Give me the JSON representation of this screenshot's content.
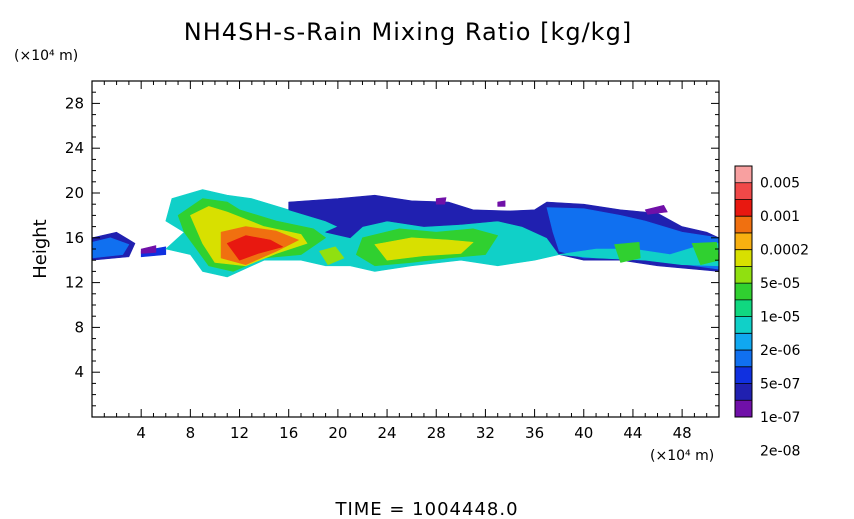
{
  "chart_data": {
    "type": "heatmap",
    "title": "NH4SH-s-Rain Mixing Ratio [kg/kg]",
    "ylabel": "Height",
    "xlabel": "",
    "y_unit": "(×10⁴ m)",
    "x_unit": "(×10⁴ m)",
    "xlim": [
      0,
      51
    ],
    "ylim": [
      0,
      30
    ],
    "x_ticks": [
      4,
      8,
      12,
      16,
      20,
      24,
      28,
      32,
      36,
      40,
      44,
      48
    ],
    "y_ticks": [
      4,
      8,
      12,
      16,
      20,
      24,
      28
    ],
    "colorbar": {
      "labels": [
        "0.005",
        "0.001",
        "0.0002",
        "5e-05",
        "1e-05",
        "2e-06",
        "5e-07",
        "1e-07",
        "2e-08"
      ],
      "colors": [
        "#f8a0a0",
        "#f04848",
        "#e81810",
        "#f07010",
        "#f8b010",
        "#d8e000",
        "#90e010",
        "#30d030",
        "#10d880",
        "#10d0c8",
        "#10a8f0",
        "#1070f0",
        "#1030e0",
        "#2020b0",
        "#7010a8"
      ]
    },
    "regions": [
      {
        "level": 13,
        "pts": [
          [
            0,
            14
          ],
          [
            3,
            14.3
          ],
          [
            3.5,
            15.5
          ],
          [
            2,
            16.5
          ],
          [
            0,
            16
          ]
        ]
      },
      {
        "level": 11,
        "pts": [
          [
            0,
            14.2
          ],
          [
            2.5,
            14.5
          ],
          [
            3,
            15.4
          ],
          [
            1.5,
            16
          ],
          [
            0,
            15.6
          ]
        ]
      },
      {
        "level": 12,
        "pts": [
          [
            4,
            14.8
          ],
          [
            6,
            15.2
          ],
          [
            6,
            14.5
          ],
          [
            4,
            14.3
          ]
        ]
      },
      {
        "level": 9,
        "pts": [
          [
            6,
            15
          ],
          [
            7.5,
            16.5
          ],
          [
            6,
            17.5
          ],
          [
            6.5,
            19.5
          ],
          [
            9,
            20.3
          ],
          [
            11,
            19.8
          ],
          [
            13,
            19.5
          ],
          [
            16,
            18.5
          ],
          [
            19,
            17.5
          ],
          [
            20,
            17
          ],
          [
            19,
            16.5
          ],
          [
            21,
            16
          ],
          [
            22,
            17
          ],
          [
            24,
            17.5
          ],
          [
            27,
            17
          ],
          [
            30,
            17.2
          ],
          [
            33,
            17.5
          ],
          [
            35,
            17
          ],
          [
            37,
            16
          ],
          [
            38,
            14.5
          ],
          [
            36,
            14
          ],
          [
            33,
            13.5
          ],
          [
            30,
            14
          ],
          [
            26,
            13.5
          ],
          [
            23,
            13
          ],
          [
            21,
            13.5
          ],
          [
            19,
            13.5
          ],
          [
            17,
            14
          ],
          [
            14,
            14
          ],
          [
            11,
            12.5
          ],
          [
            9,
            13
          ],
          [
            8,
            14.5
          ]
        ]
      },
      {
        "level": 13,
        "pts": [
          [
            16,
            19.2
          ],
          [
            20,
            19.5
          ],
          [
            23,
            19.8
          ],
          [
            26,
            19.3
          ],
          [
            29,
            19.2
          ],
          [
            31,
            18.5
          ],
          [
            34,
            18.4
          ],
          [
            36,
            18.5
          ],
          [
            37,
            19.2
          ],
          [
            40,
            19
          ],
          [
            43,
            18.5
          ],
          [
            46,
            18.2
          ],
          [
            48,
            17
          ],
          [
            50,
            16.5
          ],
          [
            51,
            16
          ],
          [
            51,
            13
          ],
          [
            49,
            13.2
          ],
          [
            46,
            13.5
          ],
          [
            43,
            14
          ],
          [
            40,
            14
          ],
          [
            38,
            14.5
          ],
          [
            37,
            16
          ],
          [
            35,
            17
          ],
          [
            33,
            17.5
          ],
          [
            30,
            17.2
          ],
          [
            27,
            17
          ],
          [
            24,
            17.5
          ],
          [
            22,
            17
          ],
          [
            21,
            16
          ],
          [
            19,
            16.5
          ],
          [
            20,
            17
          ],
          [
            19,
            17.5
          ],
          [
            16,
            18.5
          ]
        ]
      },
      {
        "level": 11,
        "pts": [
          [
            37,
            18.7
          ],
          [
            40,
            18.6
          ],
          [
            43,
            18
          ],
          [
            45,
            17.5
          ],
          [
            48,
            16.5
          ],
          [
            51,
            16
          ],
          [
            51,
            13.2
          ],
          [
            49,
            13.5
          ],
          [
            46,
            14
          ],
          [
            43,
            14.2
          ],
          [
            40,
            14.2
          ],
          [
            38,
            14.8
          ],
          [
            37.5,
            16.5
          ]
        ]
      },
      {
        "level": 9,
        "pts": [
          [
            38,
            14.5
          ],
          [
            41,
            15
          ],
          [
            44,
            15
          ],
          [
            47,
            14.5
          ],
          [
            50,
            15.5
          ],
          [
            51,
            15.5
          ],
          [
            51,
            13.5
          ],
          [
            48,
            13.6
          ],
          [
            45,
            14
          ],
          [
            41,
            14.2
          ]
        ]
      },
      {
        "level": 7,
        "pts": [
          [
            7,
            18
          ],
          [
            9,
            19.5
          ],
          [
            11,
            19.2
          ],
          [
            12,
            18.5
          ],
          [
            15,
            17.5
          ],
          [
            18,
            16.8
          ],
          [
            19,
            16
          ],
          [
            17,
            14.5
          ],
          [
            14,
            14.2
          ],
          [
            11.5,
            13
          ],
          [
            9.5,
            13.5
          ],
          [
            8.5,
            15
          ],
          [
            7.5,
            16.5
          ]
        ]
      },
      {
        "level": 5,
        "pts": [
          [
            8,
            18
          ],
          [
            9.5,
            18.8
          ],
          [
            11,
            18.3
          ],
          [
            14,
            17
          ],
          [
            17,
            16.3
          ],
          [
            17.5,
            15.5
          ],
          [
            15,
            14.6
          ],
          [
            12.5,
            13.5
          ],
          [
            10,
            13.8
          ],
          [
            9,
            15.5
          ]
        ]
      },
      {
        "level": 3,
        "pts": [
          [
            10.5,
            16.5
          ],
          [
            12.5,
            17
          ],
          [
            15,
            16.6
          ],
          [
            16.8,
            15.8
          ],
          [
            15,
            14.8
          ],
          [
            12.5,
            13.6
          ],
          [
            10.5,
            14.2
          ]
        ]
      },
      {
        "level": 2,
        "pts": [
          [
            11,
            15.5
          ],
          [
            12.5,
            16.2
          ],
          [
            14.5,
            15.8
          ],
          [
            15.5,
            15.2
          ],
          [
            13.5,
            14.6
          ],
          [
            12,
            14
          ]
        ]
      },
      {
        "level": 7,
        "pts": [
          [
            22,
            16
          ],
          [
            25,
            16.8
          ],
          [
            28,
            16.5
          ],
          [
            31,
            16.8
          ],
          [
            33,
            16.2
          ],
          [
            32,
            14.5
          ],
          [
            29,
            14.2
          ],
          [
            26,
            13.8
          ],
          [
            23,
            13.5
          ],
          [
            21.5,
            14.5
          ]
        ]
      },
      {
        "level": 5,
        "pts": [
          [
            23,
            15.4
          ],
          [
            26,
            16
          ],
          [
            29,
            15.8
          ],
          [
            31,
            15.6
          ],
          [
            30,
            14.6
          ],
          [
            27,
            14.4
          ],
          [
            24,
            14
          ]
        ]
      },
      {
        "level": 6,
        "pts": [
          [
            18.5,
            14.8
          ],
          [
            19.8,
            15.2
          ],
          [
            20.5,
            14.2
          ],
          [
            19.2,
            13.6
          ]
        ]
      },
      {
        "level": 7,
        "pts": [
          [
            42.5,
            15.4
          ],
          [
            44.5,
            15.6
          ],
          [
            44.6,
            14.2
          ],
          [
            43,
            13.8
          ]
        ]
      },
      {
        "level": 7,
        "pts": [
          [
            48.8,
            15.5
          ],
          [
            50.8,
            15.6
          ],
          [
            51,
            14
          ],
          [
            49.5,
            13.6
          ]
        ]
      },
      {
        "level": 14,
        "pts": [
          [
            28,
            19.5
          ],
          [
            28.8,
            19.6
          ],
          [
            28.7,
            19
          ],
          [
            28,
            19
          ]
        ]
      },
      {
        "level": 14,
        "pts": [
          [
            33,
            19.2
          ],
          [
            33.6,
            19.3
          ],
          [
            33.6,
            18.8
          ],
          [
            33,
            18.8
          ]
        ]
      },
      {
        "level": 14,
        "pts": [
          [
            45,
            18.5
          ],
          [
            46.5,
            18.9
          ],
          [
            46.8,
            18.3
          ],
          [
            45.2,
            18.1
          ]
        ]
      },
      {
        "level": 14,
        "pts": [
          [
            4,
            15
          ],
          [
            5.2,
            15.3
          ],
          [
            5.2,
            14.7
          ],
          [
            4,
            14.6
          ]
        ]
      }
    ]
  },
  "footer": {
    "time_label": "TIME  =  1004448.0"
  }
}
